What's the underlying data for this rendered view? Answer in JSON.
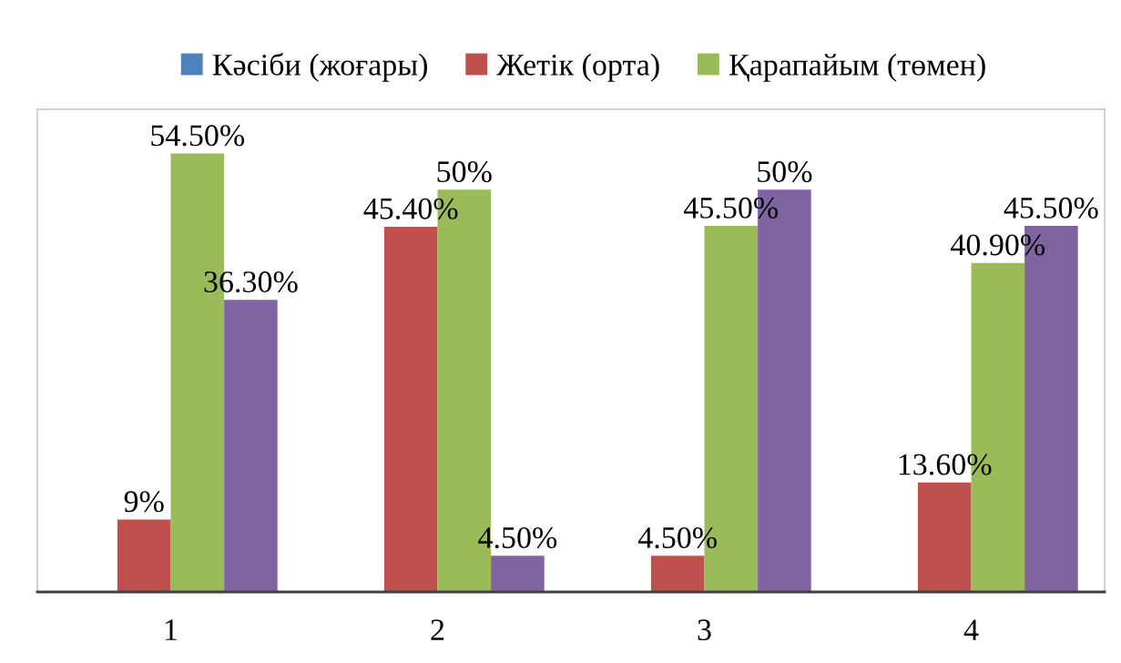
{
  "chart_data": {
    "type": "bar",
    "categories": [
      "1",
      "2",
      "3",
      "4"
    ],
    "series": [
      {
        "name": "Кәсіби (жоғары)",
        "color": "#4f81bd",
        "values": [
          null,
          null,
          null,
          null
        ]
      },
      {
        "name": "Жетік (орта)",
        "color": "#c0504d",
        "values": [
          9,
          45.4,
          4.5,
          13.6
        ],
        "value_labels": [
          "9%",
          "45.40%",
          "4.50%",
          "13.60%"
        ]
      },
      {
        "name": "Қарапайым (төмен)",
        "color": "#9bbb59",
        "values": [
          54.5,
          50,
          45.5,
          40.9
        ],
        "value_labels": [
          "54.50%",
          "50%",
          "45.50%",
          "40.90%"
        ]
      },
      {
        "color": "#8064a2",
        "values": [
          36.3,
          4.5,
          50,
          45.5
        ],
        "value_labels": [
          "36.30%",
          "4.50%",
          "50%",
          "45.50%"
        ]
      }
    ],
    "ylim": [
      0,
      60
    ],
    "tick_labels": "x",
    "legend": "top"
  }
}
